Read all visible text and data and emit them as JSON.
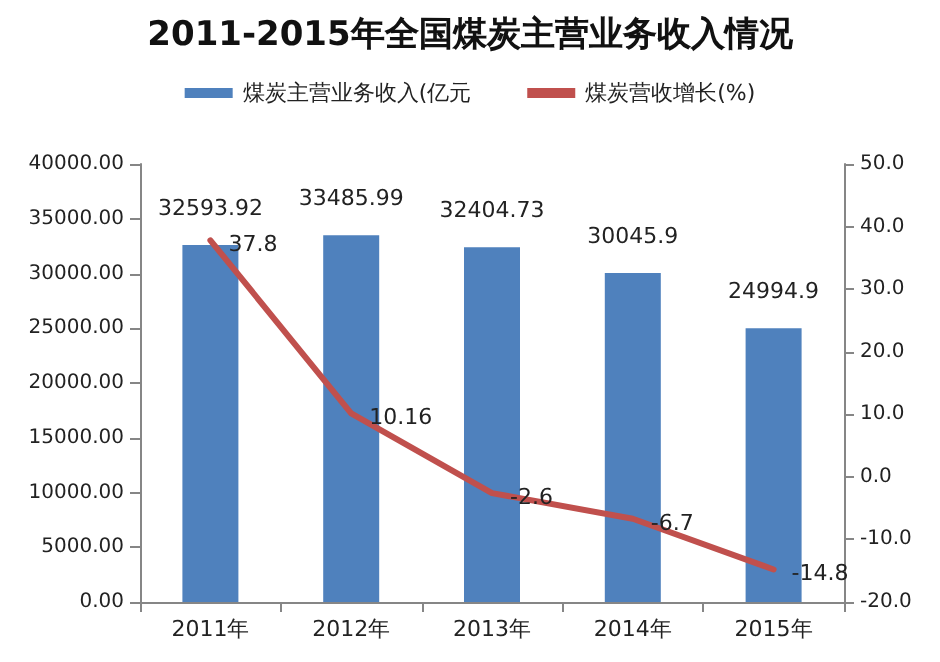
{
  "chart_data": {
    "type": "bar",
    "title": "2011-2015年全国煤炭主营业务收入情况",
    "categories": [
      "2011年",
      "2012年",
      "2013年",
      "2014年",
      "2015年"
    ],
    "series": [
      {
        "name": "煤炭主营业务收入(亿元",
        "color": "#4f81bd",
        "values": [
          32593.92,
          33485.99,
          32404.73,
          30045.9,
          24994.9
        ],
        "value_labels": [
          "32593.92",
          "33485.99",
          "32404.73",
          "30045.9",
          "24994.9"
        ]
      },
      {
        "name": "煤炭营收增长(%)",
        "type": "line",
        "axis": "y2",
        "color": "#c0504d",
        "values": [
          37.8,
          10.16,
          -2.6,
          -6.7,
          -14.8
        ],
        "value_labels": [
          "37.8",
          "10.16",
          "-2.6",
          "-6.7",
          "-14.8"
        ]
      }
    ],
    "ylim": [
      0,
      40000
    ],
    "yticks": [
      {
        "value": 0,
        "label": "0.00"
      },
      {
        "value": 5000,
        "label": "5000.00"
      },
      {
        "value": 10000,
        "label": "10000.00"
      },
      {
        "value": 15000,
        "label": "15000.00"
      },
      {
        "value": 20000,
        "label": "20000.00"
      },
      {
        "value": 25000,
        "label": "25000.00"
      },
      {
        "value": 30000,
        "label": "30000.00"
      },
      {
        "value": 35000,
        "label": "35000.00"
      },
      {
        "value": 40000,
        "label": "40000.00"
      }
    ],
    "y2lim": [
      -20,
      50
    ],
    "y2ticks": [
      {
        "value": -20,
        "label": "-20.0"
      },
      {
        "value": -10,
        "label": "-10.0"
      },
      {
        "value": 0,
        "label": "0.0"
      },
      {
        "value": 10,
        "label": "10.0"
      },
      {
        "value": 20,
        "label": "20.0"
      },
      {
        "value": 30,
        "label": "30.0"
      },
      {
        "value": 40,
        "label": "40.0"
      },
      {
        "value": 50,
        "label": "50.0"
      }
    ],
    "legend": "top",
    "grid": false,
    "marker": "none",
    "line_style": "solid"
  }
}
